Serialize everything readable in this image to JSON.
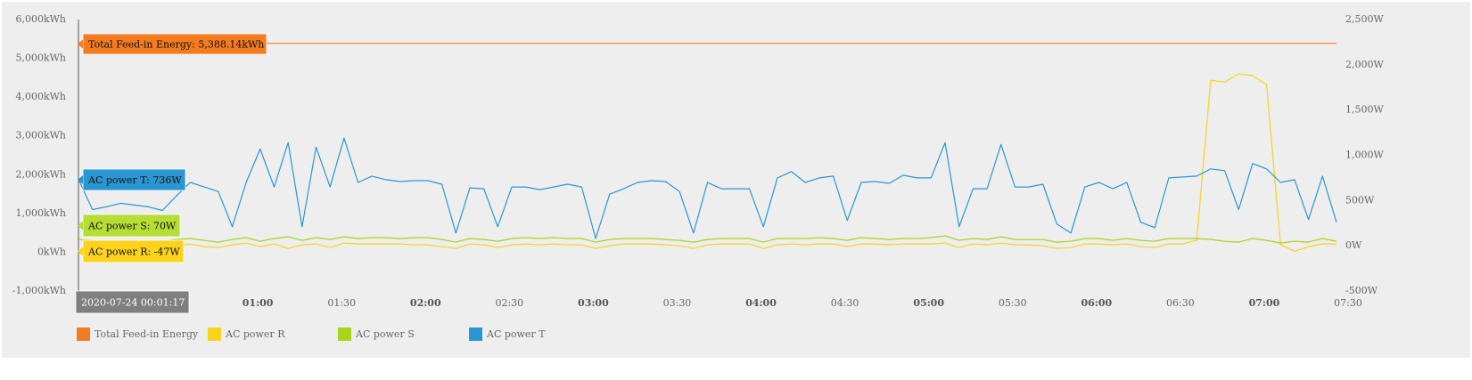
{
  "chart_data": {
    "type": "line",
    "x": [
      "00:00",
      "00:05",
      "00:10",
      "00:15",
      "00:20",
      "00:25",
      "00:30",
      "00:35",
      "00:40",
      "00:45",
      "00:50",
      "00:55",
      "01:00",
      "01:05",
      "01:10",
      "01:15",
      "01:20",
      "01:25",
      "01:30",
      "01:35",
      "01:40",
      "01:45",
      "01:50",
      "01:55",
      "02:00",
      "02:05",
      "02:10",
      "02:15",
      "02:20",
      "02:25",
      "02:30",
      "02:35",
      "02:40",
      "02:45",
      "02:50",
      "02:55",
      "03:00",
      "03:05",
      "03:10",
      "03:15",
      "03:20",
      "03:25",
      "03:30",
      "03:35",
      "03:40",
      "03:45",
      "03:50",
      "03:55",
      "04:00",
      "04:05",
      "04:10",
      "04:15",
      "04:20",
      "04:25",
      "04:30",
      "04:35",
      "04:40",
      "04:45",
      "04:50",
      "04:55",
      "05:00",
      "05:05",
      "05:10",
      "05:15",
      "05:20",
      "05:25",
      "05:30",
      "05:35",
      "05:40",
      "05:45",
      "05:50",
      "05:55",
      "06:00",
      "06:05",
      "06:10",
      "06:15",
      "06:20",
      "06:25",
      "06:30",
      "06:35",
      "06:40",
      "06:45",
      "06:50",
      "06:55",
      "07:00",
      "07:05",
      "07:10",
      "07:15",
      "07:20",
      "07:25",
      "07:30"
    ],
    "xlim": [
      "00:00",
      "07:30"
    ],
    "xticks": [
      "01:00",
      "01:30",
      "02:00",
      "02:30",
      "03:00",
      "03:30",
      "04:00",
      "04:30",
      "05:00",
      "05:30",
      "06:00",
      "06:30",
      "07:00",
      "07:30"
    ],
    "ylim": [
      -1000,
      6000
    ],
    "yticks": [
      {
        "value": -1000,
        "label": "-1,000kWh"
      },
      {
        "value": 0,
        "label": "0kWh"
      },
      {
        "value": 1000,
        "label": "1,000kWh"
      },
      {
        "value": 2000,
        "label": "2,000kWh"
      },
      {
        "value": 3000,
        "label": "3,000kWh"
      },
      {
        "value": 4000,
        "label": "4,000kWh"
      },
      {
        "value": 5000,
        "label": "5,000kWh"
      },
      {
        "value": 6000,
        "label": "6,000kWh"
      }
    ],
    "y2lim": [
      -500,
      2500
    ],
    "y2ticks": [
      {
        "value": -500,
        "label": "-500W"
      },
      {
        "value": 0,
        "label": "0W"
      },
      {
        "value": 500,
        "label": "500W"
      },
      {
        "value": 1000,
        "label": "1,000W"
      },
      {
        "value": 1500,
        "label": "1,500W"
      },
      {
        "value": 2000,
        "label": "2,000W"
      },
      {
        "value": 2500,
        "label": "2,500W"
      }
    ],
    "series": [
      {
        "name": "Total Feed-in Energy",
        "color": "#f47b20",
        "x": [
          "00:00",
          "07:30"
        ],
        "values": [
          5388.14,
          5388.14
        ]
      },
      {
        "name": "AC power R",
        "color": "#fbd21c",
        "axis": "y2",
        "values": [
          -47,
          -20,
          -10,
          0,
          10,
          10,
          -20,
          -10,
          20,
          -10,
          -20,
          10,
          30,
          -10,
          20,
          -30,
          10,
          20,
          -20,
          30,
          20,
          20,
          20,
          20,
          10,
          10,
          -10,
          -30,
          20,
          10,
          -20,
          10,
          20,
          10,
          20,
          10,
          10,
          -30,
          0,
          20,
          20,
          20,
          10,
          0,
          -30,
          10,
          20,
          20,
          20,
          -30,
          10,
          20,
          10,
          20,
          20,
          -10,
          20,
          20,
          10,
          20,
          20,
          20,
          30,
          -20,
          20,
          10,
          30,
          10,
          10,
          0,
          -30,
          -20,
          20,
          20,
          10,
          20,
          -10,
          -20,
          20,
          20,
          60,
          1830,
          1810,
          1900,
          1880,
          1780,
          10,
          -60,
          -10,
          20,
          20
        ]
      },
      {
        "name": "AC power S",
        "color": "#a8d41c",
        "axis": "y2",
        "values": [
          70,
          60,
          50,
          55,
          60,
          40,
          50,
          70,
          80,
          60,
          40,
          70,
          90,
          50,
          80,
          100,
          60,
          90,
          70,
          100,
          80,
          90,
          90,
          80,
          90,
          90,
          70,
          40,
          80,
          70,
          50,
          80,
          90,
          80,
          90,
          80,
          80,
          40,
          70,
          80,
          80,
          80,
          70,
          60,
          40,
          70,
          80,
          80,
          80,
          40,
          80,
          80,
          80,
          90,
          80,
          60,
          90,
          80,
          70,
          80,
          80,
          90,
          110,
          60,
          80,
          70,
          100,
          70,
          70,
          70,
          40,
          50,
          80,
          80,
          60,
          80,
          60,
          50,
          80,
          80,
          80,
          70,
          50,
          40,
          80,
          60,
          30,
          50,
          40,
          80,
          50
        ]
      },
      {
        "name": "AC power T",
        "color": "#2a96d2",
        "axis": "y2",
        "values": [
          736,
          400,
          430,
          470,
          450,
          430,
          390,
          550,
          700,
          650,
          600,
          210,
          700,
          1070,
          650,
          1140,
          210,
          1090,
          650,
          1190,
          700,
          770,
          730,
          710,
          720,
          720,
          680,
          140,
          640,
          630,
          210,
          650,
          650,
          620,
          650,
          680,
          650,
          80,
          570,
          630,
          700,
          720,
          710,
          600,
          140,
          700,
          630,
          630,
          630,
          210,
          750,
          820,
          700,
          750,
          770,
          280,
          700,
          710,
          690,
          780,
          750,
          750,
          1140,
          210,
          630,
          630,
          1120,
          650,
          650,
          680,
          240,
          140,
          650,
          700,
          630,
          700,
          260,
          200,
          750,
          760,
          770,
          850,
          830,
          400,
          910,
          850,
          700,
          730,
          290,
          770,
          260
        ]
      }
    ],
    "tooltips": [
      {
        "text": "Total Feed-in Energy: 5,388.14kWh",
        "color": "#f47b20"
      },
      {
        "text": "AC power T: 736W",
        "color": "#2a96d2"
      },
      {
        "text": "AC power S: 70W",
        "color": "#b5dd34"
      },
      {
        "text": "AC power R: -47W",
        "color": "#fbd21c"
      },
      {
        "text": "2020-07-24 00:01:17",
        "color": "#7f7f7f"
      }
    ],
    "legend": "bottom-left"
  }
}
